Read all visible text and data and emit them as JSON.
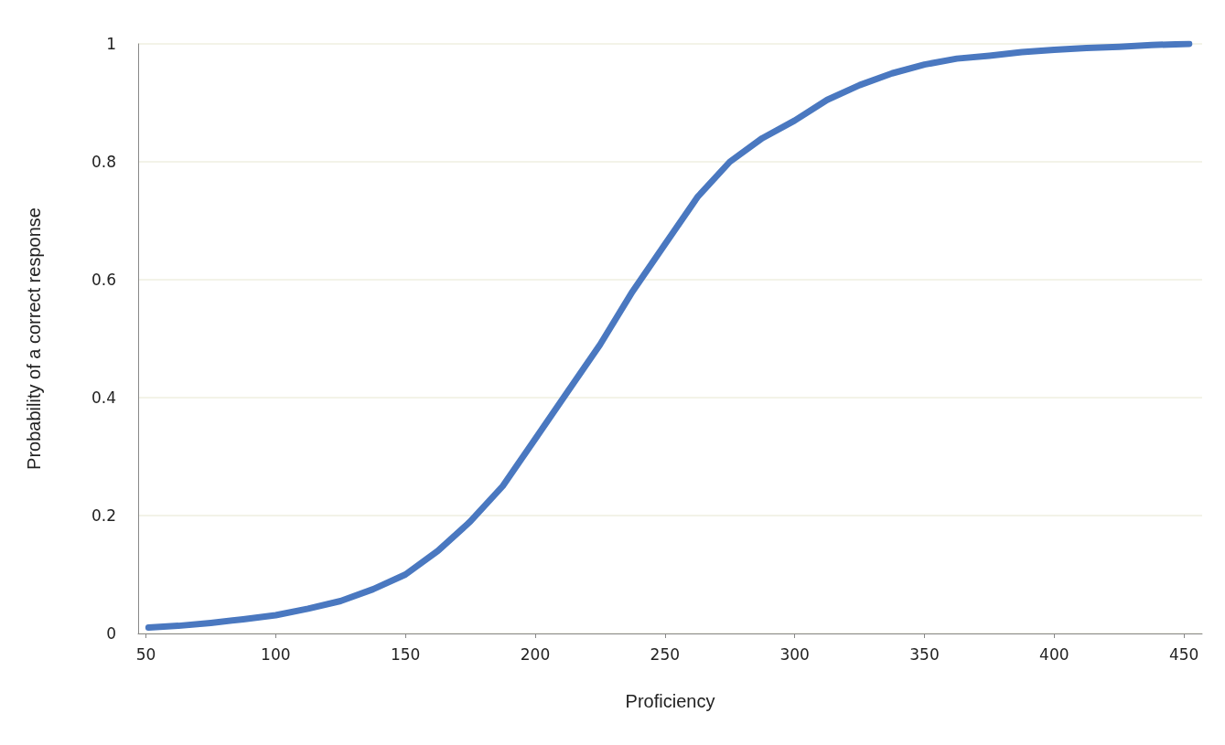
{
  "chart_data": {
    "type": "line",
    "xlabel": "Proficiency",
    "ylabel": "Probability of a correct response",
    "x": [
      51,
      62.5,
      75,
      87.5,
      100,
      112.5,
      125,
      137.5,
      150,
      162.5,
      175,
      187.5,
      200,
      212.5,
      225,
      237.5,
      250,
      262.5,
      275,
      287.5,
      300,
      312.5,
      325,
      337.5,
      350,
      362.5,
      375,
      387.5,
      400,
      412.5,
      425,
      437.5,
      452
    ],
    "series": [
      {
        "color": "#4a78c0",
        "values": [
          0.01,
          0.013,
          0.018,
          0.024,
          0.031,
          0.042,
          0.055,
          0.075,
          0.1,
          0.14,
          0.19,
          0.25,
          0.33,
          0.41,
          0.49,
          0.58,
          0.66,
          0.74,
          0.8,
          0.84,
          0.87,
          0.905,
          0.93,
          0.95,
          0.965,
          0.975,
          0.98,
          0.986,
          0.99,
          0.993,
          0.995,
          0.998,
          1.0
        ]
      }
    ],
    "xlim": [
      47,
      457
    ],
    "xticks": [
      50,
      100,
      150,
      200,
      250,
      300,
      350,
      400,
      450
    ],
    "ylim": [
      0,
      1
    ],
    "yticks": [
      0,
      0.2,
      0.4,
      0.6,
      0.8,
      1
    ],
    "grid": "y",
    "marker": "none",
    "line_style": "solid"
  }
}
